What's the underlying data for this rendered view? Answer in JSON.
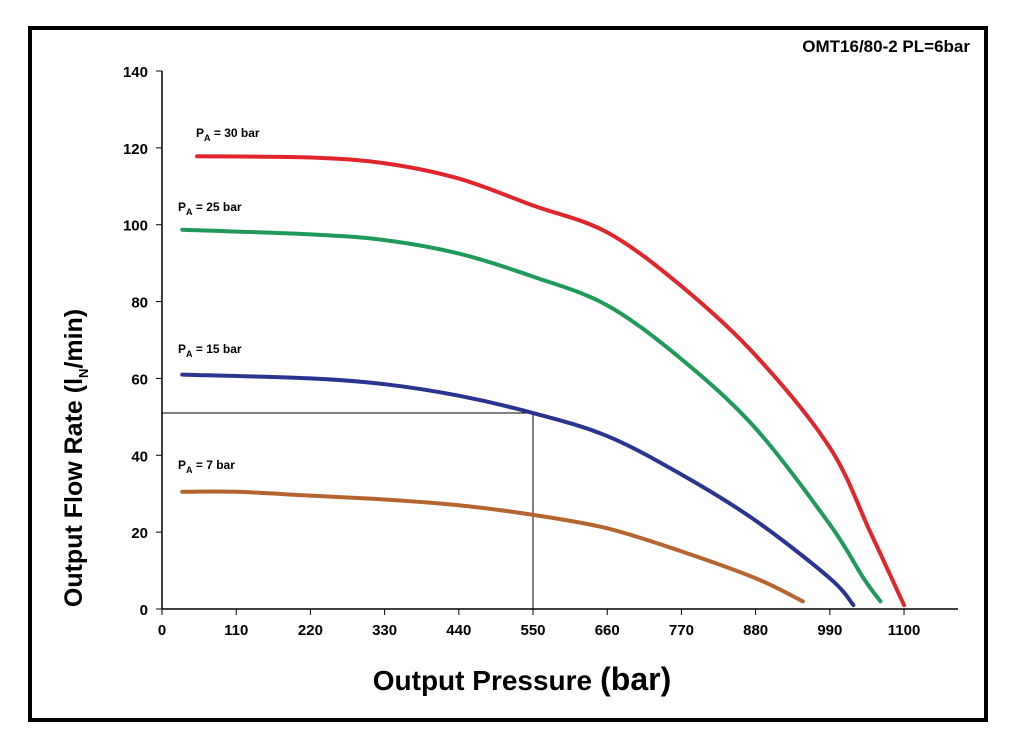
{
  "chart_data": {
    "type": "line",
    "title": "OMT16/80-2  PL=6bar",
    "xlabel": "Output Pressure (bar)",
    "xlabel_main": "Output Pressure",
    "xlabel_unit": "(bar)",
    "ylabel_pre": "Output Flow Rate (l",
    "ylabel_sub": "N",
    "ylabel_post": "/min)",
    "xlim": [
      0,
      1180
    ],
    "ylim": [
      0,
      140
    ],
    "xticks": [
      0,
      110,
      220,
      330,
      440,
      550,
      660,
      770,
      880,
      990,
      1100
    ],
    "yticks": [
      0,
      20,
      40,
      60,
      80,
      100,
      120,
      140
    ],
    "grid": false,
    "series": [
      {
        "name": "PA = 30 bar",
        "label_p": "P",
        "label_sub": "A",
        "label_rest": " = 30 bar",
        "color": "#e0252b",
        "x": [
          52,
          220,
          330,
          440,
          550,
          660,
          770,
          880,
          990,
          1050,
          1100
        ],
        "y": [
          117.8,
          117.5,
          116,
          112,
          105,
          98,
          84,
          66,
          42,
          20,
          1
        ]
      },
      {
        "name": "PA = 25 bar",
        "label_p": "P",
        "label_sub": "A",
        "label_rest": " = 25 bar",
        "color": "#1f9a5a",
        "x": [
          30,
          220,
          330,
          440,
          550,
          660,
          770,
          880,
          990,
          1040,
          1065
        ],
        "y": [
          98.7,
          97.5,
          96,
          92.5,
          86.5,
          79,
          65,
          47,
          22,
          8,
          2
        ]
      },
      {
        "name": "PA = 15 bar",
        "label_p": "P",
        "label_sub": "A",
        "label_rest": " = 15 bar",
        "color": "#2b3591",
        "x": [
          30,
          220,
          330,
          440,
          550,
          660,
          770,
          880,
          990,
          1025
        ],
        "y": [
          61,
          60,
          58.5,
          55.5,
          51,
          45,
          35,
          23,
          8,
          1
        ]
      },
      {
        "name": "PA = 7 bar",
        "label_p": "P",
        "label_sub": "A",
        "label_rest": " = 7 bar",
        "color": "#b5652d",
        "x": [
          30,
          110,
          220,
          330,
          440,
          550,
          660,
          770,
          880,
          950
        ],
        "y": [
          30.5,
          30.5,
          29.5,
          28.5,
          27,
          24.5,
          21,
          15,
          8,
          2
        ]
      }
    ],
    "annotations": [
      {
        "type": "reference-lines",
        "x": 550,
        "y": 51
      }
    ]
  }
}
